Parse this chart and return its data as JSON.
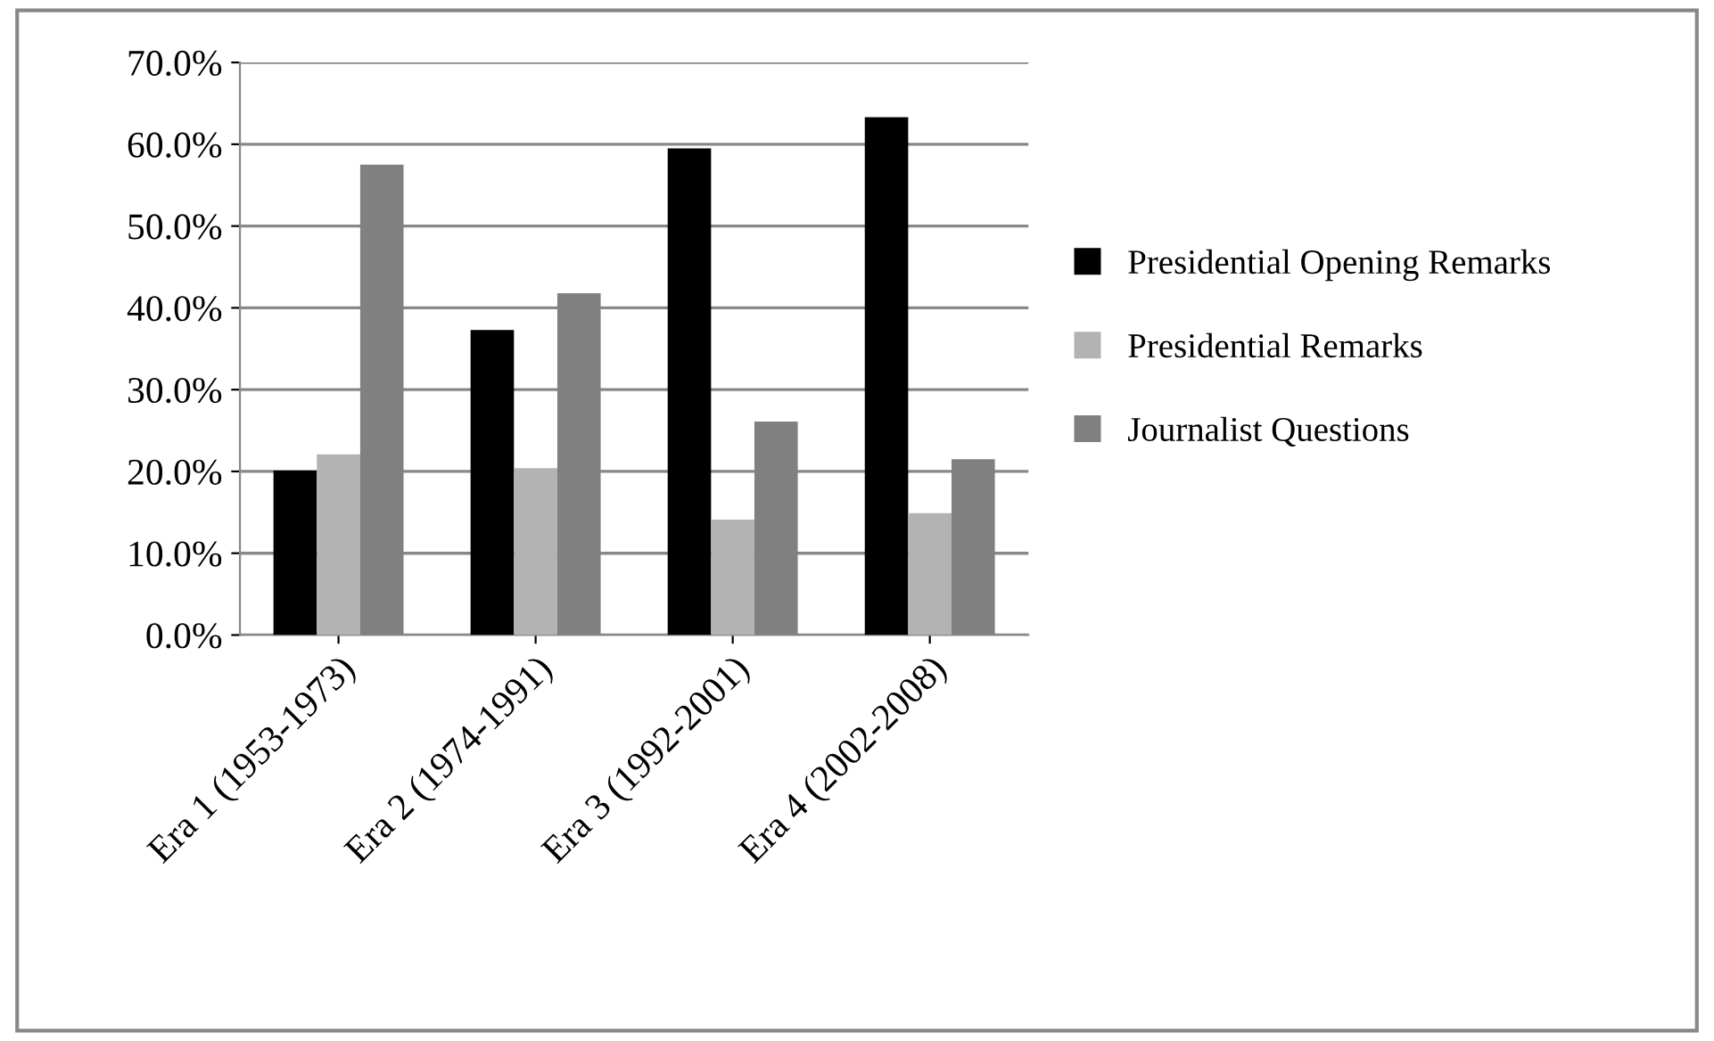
{
  "chart_data": {
    "type": "bar",
    "categories": [
      "Era 1 (1953-1973)",
      "Era 2 (1974-1991)",
      "Era 3 (1992-2001)",
      "Era 4 (2002-2008)"
    ],
    "series": [
      {
        "name": "Presidential Opening Remarks",
        "color": "#000000",
        "values": [
          20.1,
          37.3,
          59.5,
          63.3
        ]
      },
      {
        "name": "Presidential Remarks",
        "color": "#b3b3b3",
        "values": [
          22.1,
          20.4,
          14.1,
          14.9
        ]
      },
      {
        "name": "Journalist Questions",
        "color": "#808080",
        "values": [
          57.5,
          41.8,
          26.1,
          21.5
        ]
      }
    ],
    "ylim": [
      0,
      70
    ],
    "yticks": [
      {
        "value": 0,
        "label": "0.0%"
      },
      {
        "value": 10,
        "label": "10.0%"
      },
      {
        "value": 20,
        "label": "20.0%"
      },
      {
        "value": 30,
        "label": "30.0%"
      },
      {
        "value": 40,
        "label": "40.0%"
      },
      {
        "value": 50,
        "label": "50.0%"
      },
      {
        "value": 60,
        "label": "60.0%"
      },
      {
        "value": 70,
        "label": "70.0%"
      }
    ],
    "grid": "y",
    "legend": "right"
  }
}
